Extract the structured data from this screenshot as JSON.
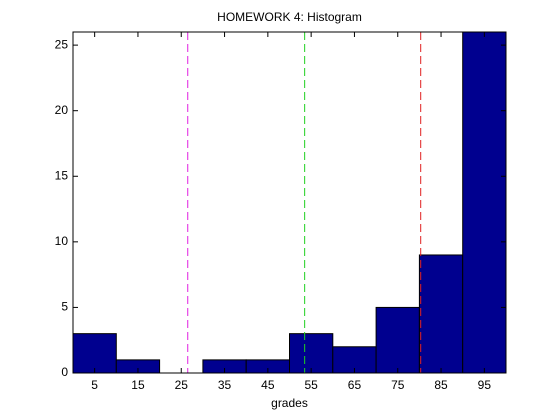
{
  "chart_data": {
    "type": "histogram",
    "title": "HOMEWORK 4: Histogram",
    "x_label": "grades",
    "bins": [
      0,
      10,
      20,
      30,
      40,
      50,
      60,
      70,
      80,
      90,
      100
    ],
    "values": [
      3,
      1,
      0,
      1,
      1,
      3,
      2,
      5,
      9,
      26
    ],
    "color": "#00008f",
    "xlim": [
      0,
      100
    ],
    "xticks": [
      5,
      15,
      25,
      35,
      45,
      55,
      65,
      75,
      85,
      95
    ],
    "ylim": [
      0,
      26
    ],
    "yticks": [
      0,
      5,
      10,
      15,
      20,
      25
    ],
    "lines": [
      {
        "value": 26.5,
        "color": "#e020e0"
      },
      {
        "value": 53.5,
        "color": "#20d020"
      },
      {
        "value": 80.3,
        "color": "#e02020"
      }
    ]
  }
}
